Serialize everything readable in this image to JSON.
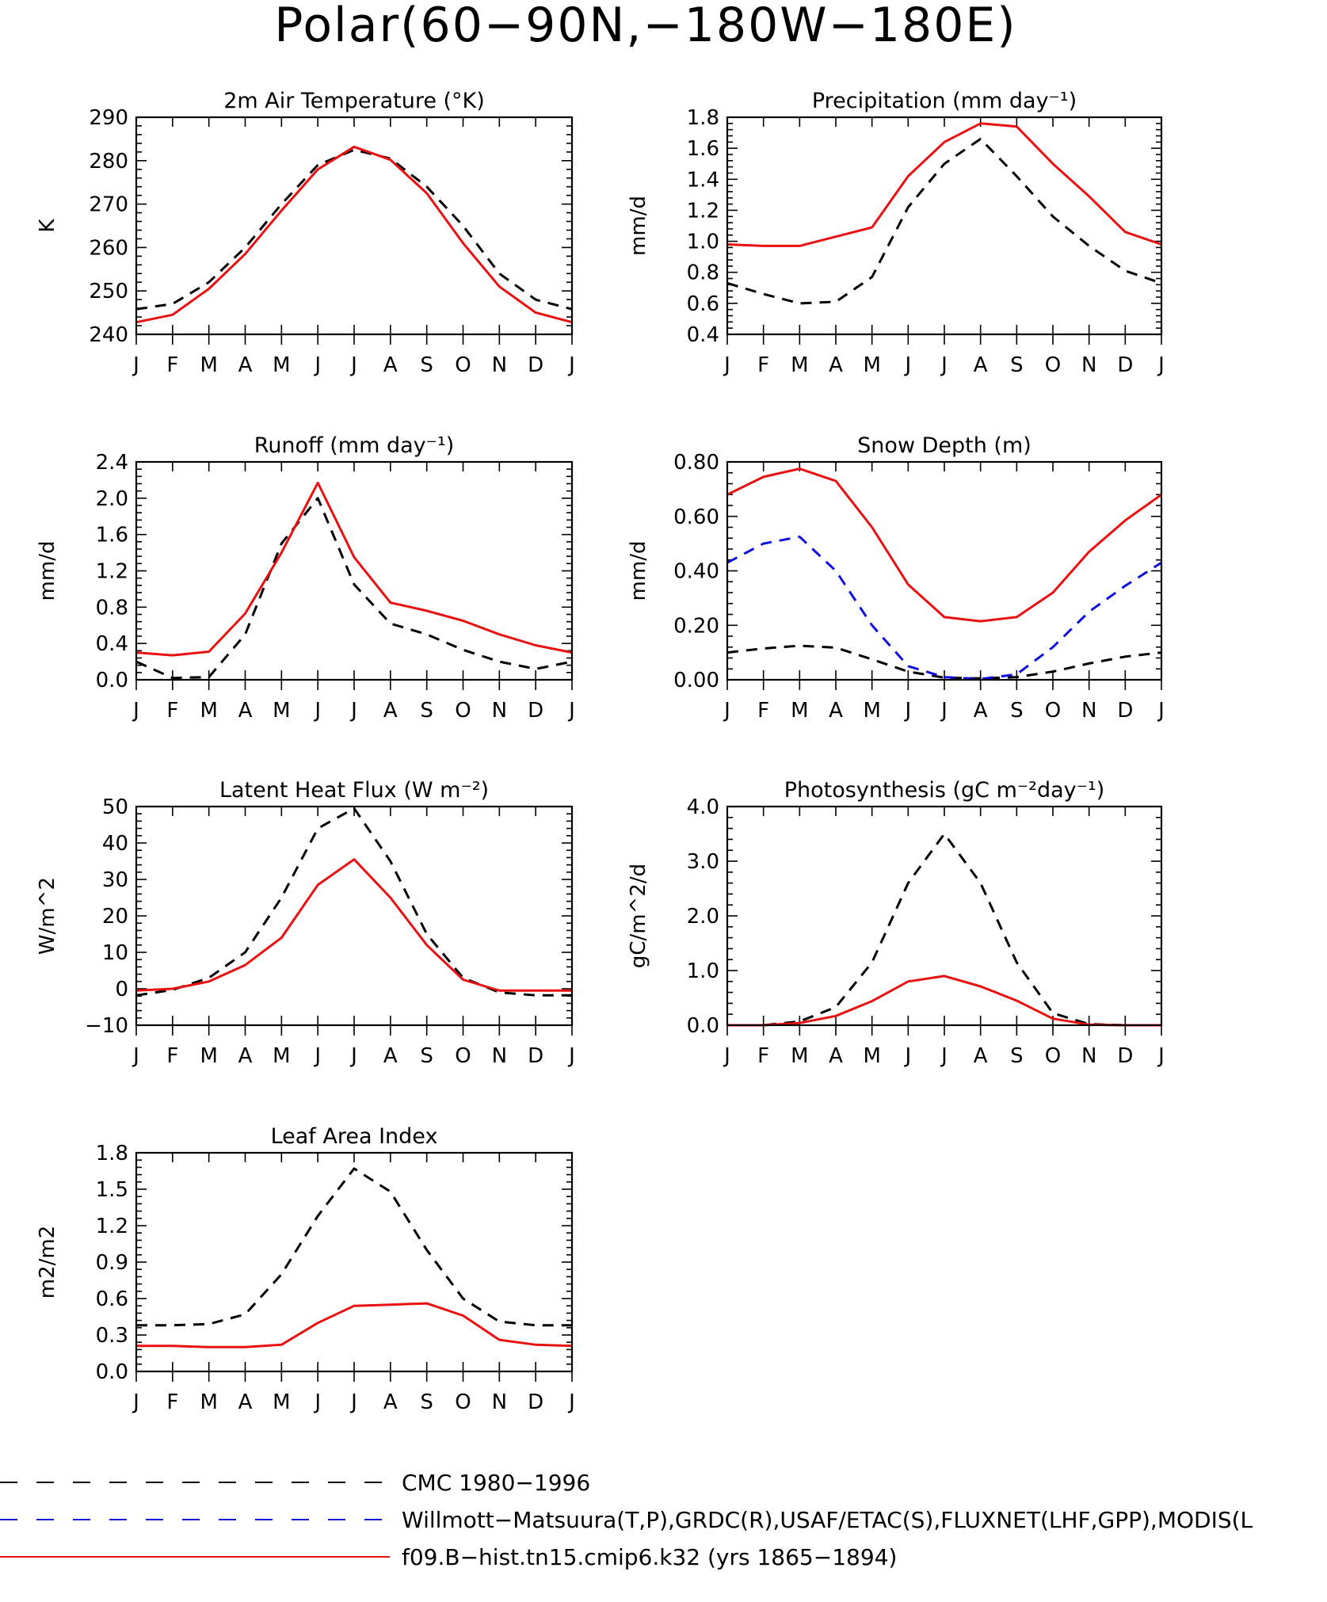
{
  "figure": {
    "title": "Polar(60−90N,−180W−180E)"
  },
  "series_styles": {
    "CMC 1980−1996": {
      "color": "#000000",
      "dash": "dashed"
    },
    "Willmott−Matsuura(T,P),GRDC(R),USAF/ETAC(S),FLUXNET(LHF,GPP),MODIS(L": {
      "color": "#1010dd",
      "dash": "dashed"
    },
    "f09.B−hist.tn15.cmip6.k32 (yrs 1865−1894)": {
      "color": "#e81010",
      "dash": "solid"
    }
  },
  "legend": {
    "placement": "bottom",
    "entries": [
      {
        "label": "CMC 1980−1996",
        "color": "#000000",
        "dash": "dashed"
      },
      {
        "label": "Willmott−Matsuura(T,P),GRDC(R),USAF/ETAC(S),FLUXNET(LHF,GPP),MODIS(L",
        "color": "#1010dd",
        "dash": "dashed"
      },
      {
        "label": "f09.B−hist.tn15.cmip6.k32 (yrs 1865−1894)",
        "color": "#e81010",
        "dash": "solid"
      }
    ]
  },
  "chart_data": [
    {
      "type": "line",
      "title": "2m Air Temperature (°K)",
      "ylabel": "K",
      "x": [
        "J",
        "F",
        "M",
        "A",
        "M",
        "J",
        "J",
        "A",
        "S",
        "O",
        "N",
        "D",
        "J"
      ],
      "ylim": [
        240,
        290
      ],
      "yticks": [
        240,
        250,
        260,
        270,
        280,
        290
      ],
      "ytick_labels": [
        "240",
        "250",
        "260",
        "270",
        "280",
        "290"
      ],
      "series": [
        {
          "name": "CMC 1980−1996",
          "values": [
            245.8,
            247,
            252,
            260,
            270,
            279,
            282.5,
            280.5,
            274,
            265,
            254,
            248,
            245.8
          ]
        },
        {
          "name": "f09.B−hist.tn15.cmip6.k32 (yrs 1865−1894)",
          "values": [
            242.8,
            244.5,
            250.5,
            258.5,
            268.5,
            278,
            283.2,
            280.2,
            272.5,
            261,
            251,
            245,
            242.8
          ]
        }
      ]
    },
    {
      "type": "line",
      "title": "Precipitation (mm day⁻¹)",
      "ylabel": "mm/d",
      "x": [
        "J",
        "F",
        "M",
        "A",
        "M",
        "J",
        "J",
        "A",
        "S",
        "O",
        "N",
        "D",
        "J"
      ],
      "ylim": [
        0.4,
        1.8
      ],
      "yticks": [
        0.4,
        0.6,
        0.8,
        1.0,
        1.2,
        1.4,
        1.6,
        1.8
      ],
      "ytick_labels": [
        "0.4",
        "0.6",
        "0.8",
        "1.0",
        "1.2",
        "1.4",
        "1.6",
        "1.8"
      ],
      "series": [
        {
          "name": "CMC 1980−1996",
          "values": [
            0.73,
            0.66,
            0.6,
            0.61,
            0.77,
            1.22,
            1.5,
            1.66,
            1.42,
            1.16,
            0.97,
            0.81,
            0.73
          ]
        },
        {
          "name": "f09.B−hist.tn15.cmip6.k32 (yrs 1865−1894)",
          "values": [
            0.98,
            0.97,
            0.97,
            1.03,
            1.09,
            1.42,
            1.64,
            1.76,
            1.74,
            1.5,
            1.29,
            1.06,
            0.98
          ]
        }
      ]
    },
    {
      "type": "line",
      "title": "Runoff (mm day⁻¹)",
      "ylabel": "mm/d",
      "x": [
        "J",
        "F",
        "M",
        "A",
        "M",
        "J",
        "J",
        "A",
        "S",
        "O",
        "N",
        "D",
        "J"
      ],
      "ylim": [
        0.0,
        2.4
      ],
      "yticks": [
        0.0,
        0.4,
        0.8,
        1.2,
        1.6,
        2.0,
        2.4
      ],
      "ytick_labels": [
        "0.0",
        "0.4",
        "0.8",
        "1.2",
        "1.6",
        "2.0",
        "2.4"
      ],
      "series": [
        {
          "name": "CMC 1980−1996",
          "values": [
            0.2,
            0.02,
            0.03,
            0.5,
            1.5,
            2.0,
            1.05,
            0.62,
            0.5,
            0.33,
            0.2,
            0.12,
            0.2
          ]
        },
        {
          "name": "f09.B−hist.tn15.cmip6.k32 (yrs 1865−1894)",
          "values": [
            0.3,
            0.27,
            0.31,
            0.73,
            1.4,
            2.17,
            1.35,
            0.85,
            0.76,
            0.65,
            0.5,
            0.38,
            0.3
          ]
        }
      ]
    },
    {
      "type": "line",
      "title": "Snow Depth (m)",
      "ylabel": "mm/d",
      "x": [
        "J",
        "F",
        "M",
        "A",
        "M",
        "J",
        "J",
        "A",
        "S",
        "O",
        "N",
        "D",
        "J"
      ],
      "ylim": [
        0.0,
        0.8
      ],
      "yticks": [
        0.0,
        0.2,
        0.4,
        0.6,
        0.8
      ],
      "ytick_labels": [
        "0.00",
        "0.20",
        "0.40",
        "0.60",
        "0.80"
      ],
      "series": [
        {
          "name": "CMC 1980−1996",
          "values": [
            0.1,
            0.115,
            0.125,
            0.118,
            0.075,
            0.03,
            0.008,
            0.005,
            0.01,
            0.03,
            0.06,
            0.085,
            0.1
          ]
        },
        {
          "name": "Willmott−Matsuura(T,P),GRDC(R),USAF/ETAC(S),FLUXNET(LHF,GPP),MODIS(L",
          "values": [
            0.43,
            0.5,
            0.525,
            0.4,
            0.2,
            0.05,
            0.01,
            0.003,
            0.02,
            0.12,
            0.25,
            0.345,
            0.43
          ]
        },
        {
          "name": "f09.B−hist.tn15.cmip6.k32 (yrs 1865−1894)",
          "values": [
            0.68,
            0.745,
            0.775,
            0.73,
            0.56,
            0.35,
            0.23,
            0.215,
            0.23,
            0.32,
            0.47,
            0.585,
            0.68
          ]
        }
      ]
    },
    {
      "type": "line",
      "title": "Latent Heat Flux (W m⁻²)",
      "ylabel": "W/m^2",
      "x": [
        "J",
        "F",
        "M",
        "A",
        "M",
        "J",
        "J",
        "A",
        "S",
        "O",
        "N",
        "D",
        "J"
      ],
      "ylim": [
        -10,
        50
      ],
      "yticks": [
        -10,
        0,
        10,
        20,
        30,
        40,
        50
      ],
      "ytick_labels": [
        "−10",
        "0",
        "10",
        "20",
        "30",
        "40",
        "50"
      ],
      "series": [
        {
          "name": "CMC 1980−1996",
          "values": [
            -1.8,
            -0.3,
            3,
            10,
            25,
            44,
            49.5,
            35,
            15,
            3,
            -1,
            -1.8,
            -1.8
          ]
        },
        {
          "name": "f09.B−hist.tn15.cmip6.k32 (yrs 1865−1894)",
          "values": [
            -0.5,
            0,
            2,
            6.5,
            14,
            28.5,
            35.5,
            25,
            12,
            2.5,
            -0.5,
            -0.5,
            -0.5
          ]
        }
      ]
    },
    {
      "type": "line",
      "title": "Photosynthesis (gC m⁻²day⁻¹)",
      "ylabel": "gC/m^2/d",
      "x": [
        "J",
        "F",
        "M",
        "A",
        "M",
        "J",
        "J",
        "A",
        "S",
        "O",
        "N",
        "D",
        "J"
      ],
      "ylim": [
        0.0,
        4.0
      ],
      "yticks": [
        0.0,
        1.0,
        2.0,
        3.0,
        4.0
      ],
      "ytick_labels": [
        "0.0",
        "1.0",
        "2.0",
        "3.0",
        "4.0"
      ],
      "series": [
        {
          "name": "CMC 1980−1996",
          "values": [
            0.0,
            0.0,
            0.07,
            0.33,
            1.15,
            2.6,
            3.5,
            2.6,
            1.15,
            0.22,
            0.02,
            0.0,
            0.0
          ]
        },
        {
          "name": "f09.B−hist.tn15.cmip6.k32 (yrs 1865−1894)",
          "values": [
            0.0,
            0.0,
            0.04,
            0.17,
            0.44,
            0.8,
            0.9,
            0.71,
            0.45,
            0.12,
            0.01,
            0.0,
            0.0
          ]
        }
      ]
    },
    {
      "type": "line",
      "title": "Leaf Area Index",
      "ylabel": "m2/m2",
      "x": [
        "J",
        "F",
        "M",
        "A",
        "M",
        "J",
        "J",
        "A",
        "S",
        "O",
        "N",
        "D",
        "J"
      ],
      "ylim": [
        0.0,
        1.8
      ],
      "yticks": [
        0.0,
        0.3,
        0.6,
        0.9,
        1.2,
        1.5,
        1.8
      ],
      "ytick_labels": [
        "0.0",
        "0.3",
        "0.6",
        "0.9",
        "1.2",
        "1.5",
        "1.8"
      ],
      "series": [
        {
          "name": "CMC 1980−1996",
          "values": [
            0.38,
            0.38,
            0.39,
            0.47,
            0.8,
            1.28,
            1.67,
            1.48,
            1.0,
            0.6,
            0.41,
            0.38,
            0.38
          ]
        },
        {
          "name": "f09.B−hist.tn15.cmip6.k32 (yrs 1865−1894)",
          "values": [
            0.21,
            0.21,
            0.2,
            0.2,
            0.22,
            0.4,
            0.54,
            0.55,
            0.56,
            0.46,
            0.26,
            0.22,
            0.21
          ]
        }
      ]
    }
  ]
}
